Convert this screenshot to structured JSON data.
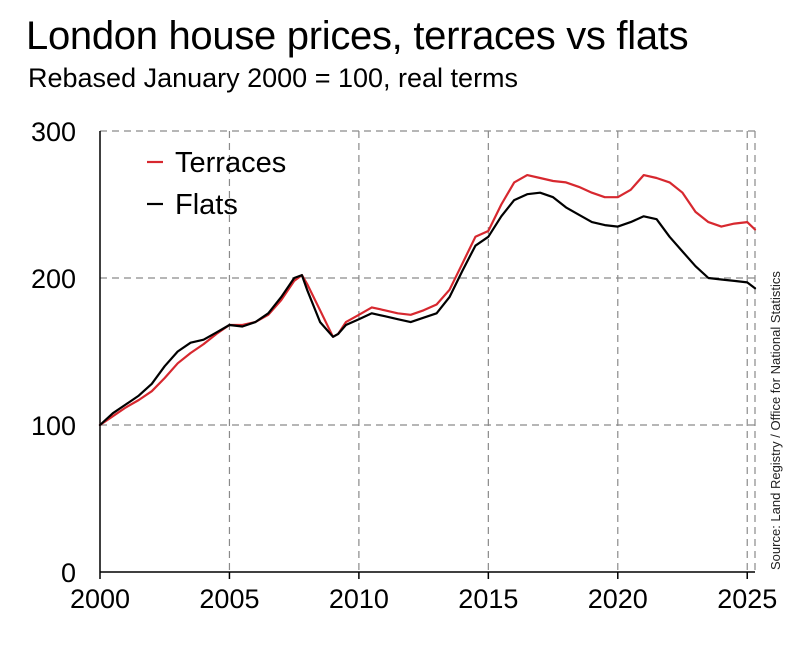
{
  "chart_data": {
    "type": "line",
    "title": "London house prices, terraces vs flats",
    "subtitle": "Rebased January 2000 = 100, real terms",
    "source": "Source: Land Registry / Office for National Statistics",
    "xlabel": "",
    "ylabel": "",
    "xlim": [
      2000,
      2025.3
    ],
    "ylim": [
      0,
      300
    ],
    "x_ticks": [
      2000,
      2005,
      2010,
      2015,
      2020,
      2025
    ],
    "x_tick_labels": [
      "2000",
      "2005",
      "2010",
      "2015",
      "2020",
      "2025"
    ],
    "y_ticks": [
      0,
      100,
      200,
      300
    ],
    "y_tick_labels": [
      "0",
      "100",
      "200",
      "300"
    ],
    "grid": true,
    "legend_position": "top-left",
    "x": [
      2000.0,
      2000.5,
      2001.0,
      2001.5,
      2002.0,
      2002.5,
      2003.0,
      2003.5,
      2004.0,
      2004.5,
      2005.0,
      2005.5,
      2006.0,
      2006.5,
      2007.0,
      2007.5,
      2007.8,
      2008.0,
      2008.5,
      2009.0,
      2009.2,
      2009.5,
      2010.0,
      2010.5,
      2011.0,
      2011.5,
      2012.0,
      2012.5,
      2013.0,
      2013.5,
      2014.0,
      2014.5,
      2015.0,
      2015.5,
      2016.0,
      2016.5,
      2017.0,
      2017.5,
      2018.0,
      2018.5,
      2019.0,
      2019.5,
      2020.0,
      2020.5,
      2021.0,
      2021.5,
      2022.0,
      2022.5,
      2023.0,
      2023.5,
      2024.0,
      2024.5,
      2025.0,
      2025.3
    ],
    "series": [
      {
        "name": "Terraces",
        "color": "#d7282f",
        "values": [
          100,
          106,
          112,
          117,
          123,
          132,
          142,
          149,
          155,
          162,
          168,
          168,
          170,
          175,
          185,
          198,
          202,
          196,
          178,
          160,
          162,
          170,
          175,
          180,
          178,
          176,
          175,
          178,
          182,
          192,
          210,
          228,
          232,
          250,
          265,
          270,
          268,
          266,
          265,
          262,
          258,
          255,
          255,
          260,
          270,
          268,
          265,
          258,
          245,
          238,
          235,
          237,
          238,
          233
        ]
      },
      {
        "name": "Flats",
        "color": "#000000",
        "values": [
          100,
          108,
          114,
          120,
          128,
          140,
          150,
          156,
          158,
          163,
          168,
          167,
          170,
          176,
          187,
          200,
          202,
          192,
          170,
          160,
          162,
          168,
          172,
          176,
          174,
          172,
          170,
          173,
          176,
          187,
          205,
          222,
          228,
          242,
          253,
          257,
          258,
          255,
          248,
          243,
          238,
          236,
          235,
          238,
          242,
          240,
          228,
          218,
          208,
          200,
          199,
          198,
          197,
          193
        ]
      }
    ]
  }
}
